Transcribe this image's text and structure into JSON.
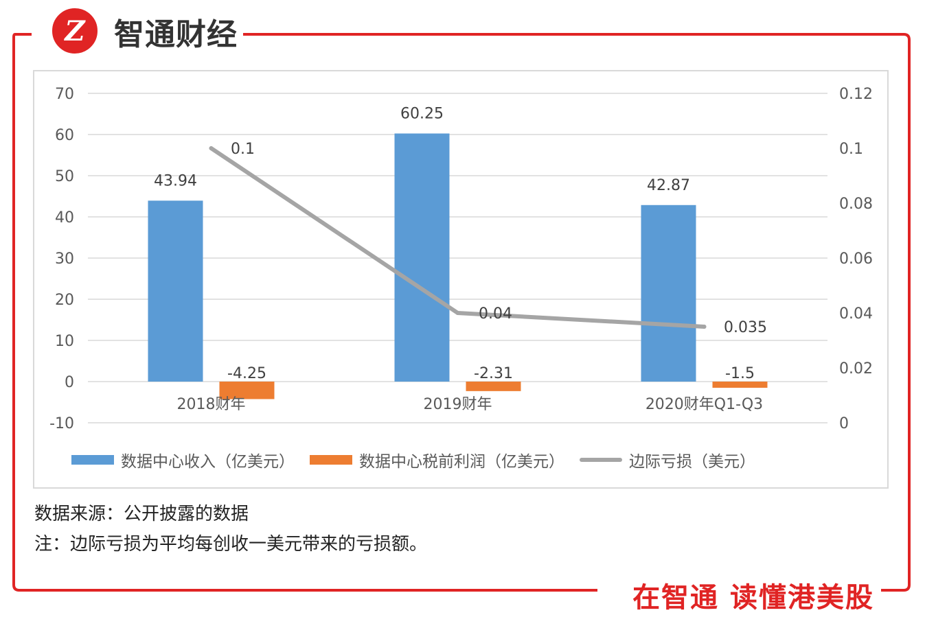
{
  "brand": {
    "title": "智通财经",
    "logo_text": "Z",
    "slogan": "在智通  读懂港美股",
    "accent": "#e02424"
  },
  "notes": {
    "source": "数据来源：公开披露的数据",
    "remark": "注：边际亏损为平均每创收一美元带来的亏损额。"
  },
  "chart_data": {
    "type": "bar",
    "categories": [
      "2018财年",
      "2019财年",
      "2020财年Q1-Q3"
    ],
    "series": [
      {
        "name": "数据中心收入（亿美元）",
        "kind": "bar",
        "axis": "left",
        "color": "#5b9bd5",
        "values": [
          43.94,
          60.25,
          42.87
        ],
        "labels": [
          "43.94",
          "60.25",
          "42.87"
        ]
      },
      {
        "name": "数据中心税前利润（亿美元）",
        "kind": "bar",
        "axis": "left",
        "color": "#ed7d31",
        "values": [
          -4.25,
          -2.31,
          -1.5
        ],
        "labels": [
          "-4.25",
          "-2.31",
          "-1.5"
        ]
      },
      {
        "name": "边际亏损（美元）",
        "kind": "line",
        "axis": "right",
        "color": "#a5a5a5",
        "values": [
          0.1,
          0.04,
          0.035
        ],
        "labels": [
          "0.1",
          "0.04",
          "0.035"
        ]
      }
    ],
    "y_left": {
      "min": -10,
      "max": 70,
      "ticks": [
        "-10",
        "0",
        "10",
        "20",
        "30",
        "40",
        "50",
        "60",
        "70"
      ]
    },
    "y_right": {
      "min": 0,
      "max": 0.12,
      "ticks": [
        "0",
        "0.02",
        "0.04",
        "0.06",
        "0.08",
        "0.1",
        "0.12"
      ]
    },
    "grid": true,
    "legend_position": "bottom"
  }
}
